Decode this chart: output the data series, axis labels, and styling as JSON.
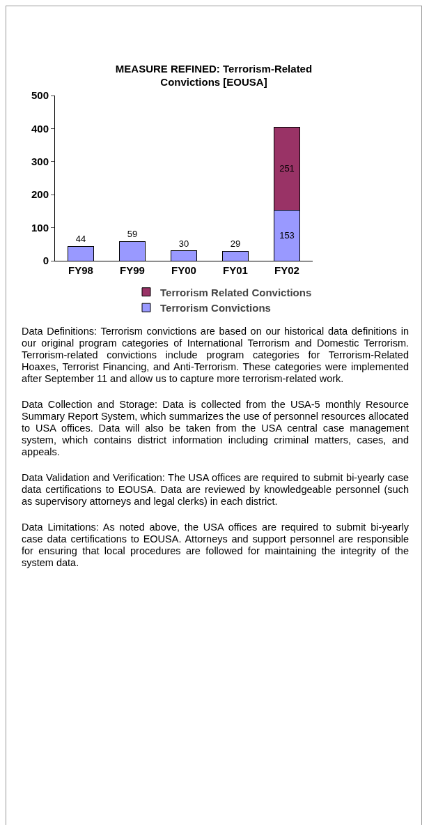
{
  "chart_data": {
    "type": "bar",
    "title": "MEASURE REFINED: Terrorism-Related Convictions [EOUSA]",
    "categories": [
      "FY98",
      "FY99",
      "FY00",
      "FY01",
      "FY02"
    ],
    "series": [
      {
        "name": "Terrorism Convictions",
        "color": "#9999ff",
        "values": [
          44,
          59,
          30,
          29,
          153
        ]
      },
      {
        "name": "Terrorism Related Convictions",
        "color": "#993366",
        "values": [
          null,
          null,
          null,
          null,
          251
        ]
      }
    ],
    "stacked": true,
    "data_labels": true,
    "ylim": [
      0,
      500
    ],
    "yticks": [
      0,
      100,
      200,
      300,
      400,
      500
    ],
    "grid": false,
    "legend": "bottom",
    "annotations": [
      "Data Definitions: Terrorism convictions are based on our historical data definitions in our original program categories of International Terrorism and Domestic Terrorism. Terrorism-related convictions include program categories for Terrorism-Related Hoaxes, Terrorist Financing, and Anti-Terrorism. These categories were implemented after September 11 and allow us to capture more terrorism-related work.",
      "Data Collection and Storage: Data is collected from the USA-5 monthly Resource Summary Report System, which summarizes the use of personnel resources allocated to USA offices. Data will also be taken from the USA central case management system, which contains district information including criminal matters, cases, and appeals.",
      "Data Validation and Verification: The USA offices are required to submit bi-yearly case data certifications to EOUSA. Data are reviewed by knowledgeable personnel (such as supervisory attorneys and legal clerks) in each district.",
      "Data Limitations: As noted above, the USA offices are required to submit bi-yearly case data certifications to EOUSA. Attorneys and support personnel are responsible for ensuring that local procedures are followed for maintaining the integrity of the system data."
    ]
  }
}
